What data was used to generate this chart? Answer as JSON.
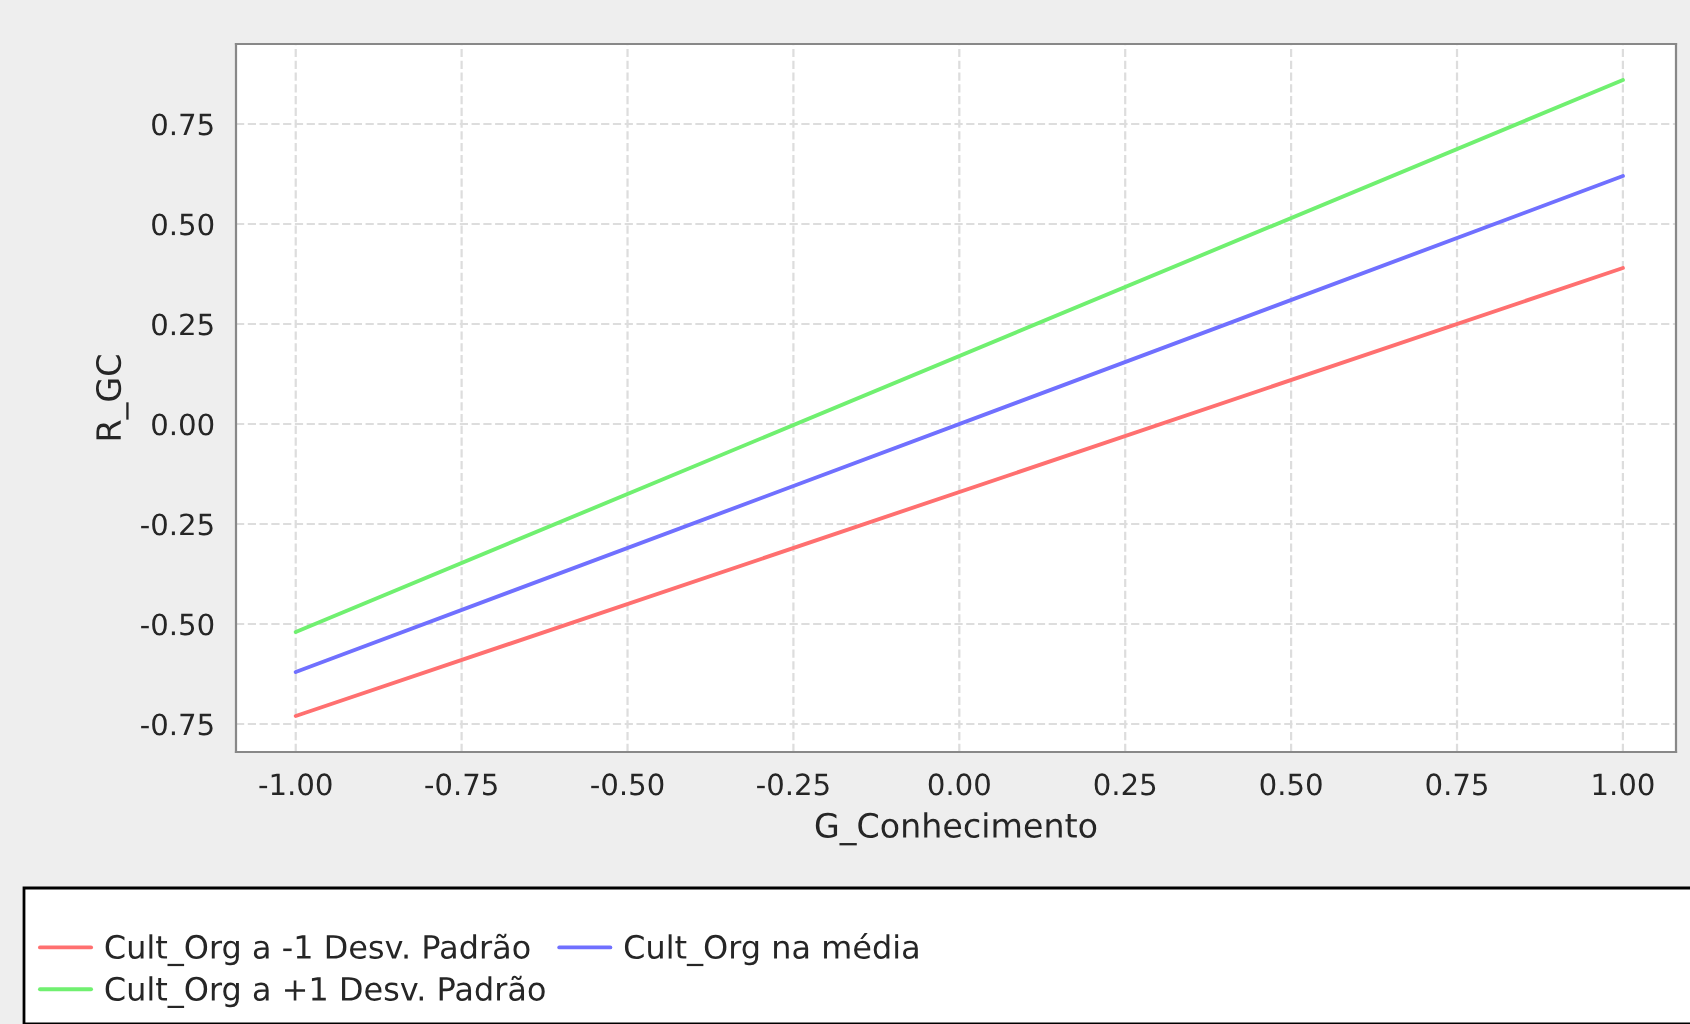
{
  "chart_data": {
    "type": "line",
    "xlabel": "G_Conhecimento",
    "ylabel": "R_GC",
    "x": [
      -1.0,
      1.0
    ],
    "series": [
      {
        "name": "Cult_Org a -1 Desv. Padrão",
        "color": "#ff7070",
        "values": [
          -0.73,
          0.39
        ]
      },
      {
        "name": "Cult_Org na média",
        "color": "#7070ff",
        "values": [
          -0.62,
          0.62
        ]
      },
      {
        "name": "Cult_Org a +1 Desv. Padrão",
        "color": "#70f070",
        "values": [
          -0.52,
          0.86
        ]
      }
    ],
    "xlim": [
      -1.09,
      1.08
    ],
    "ylim": [
      -0.82,
      0.95
    ],
    "xticks": [
      {
        "value": -1.0,
        "label": "-1.00"
      },
      {
        "value": -0.75,
        "label": "-0.75"
      },
      {
        "value": -0.5,
        "label": "-0.50"
      },
      {
        "value": -0.25,
        "label": "-0.25"
      },
      {
        "value": 0.0,
        "label": "0.00"
      },
      {
        "value": 0.25,
        "label": "0.25"
      },
      {
        "value": 0.5,
        "label": "0.50"
      },
      {
        "value": 0.75,
        "label": "0.75"
      },
      {
        "value": 1.0,
        "label": "1.00"
      }
    ],
    "yticks": [
      {
        "value": -0.75,
        "label": "-0.75"
      },
      {
        "value": -0.5,
        "label": "-0.50"
      },
      {
        "value": -0.25,
        "label": "-0.25"
      },
      {
        "value": 0.0,
        "label": "0.00"
      },
      {
        "value": 0.25,
        "label": "0.25"
      },
      {
        "value": 0.5,
        "label": "0.50"
      },
      {
        "value": 0.75,
        "label": "0.75"
      }
    ],
    "grid": true,
    "legend": "bottom",
    "marker": "none",
    "line_style": "solid"
  }
}
